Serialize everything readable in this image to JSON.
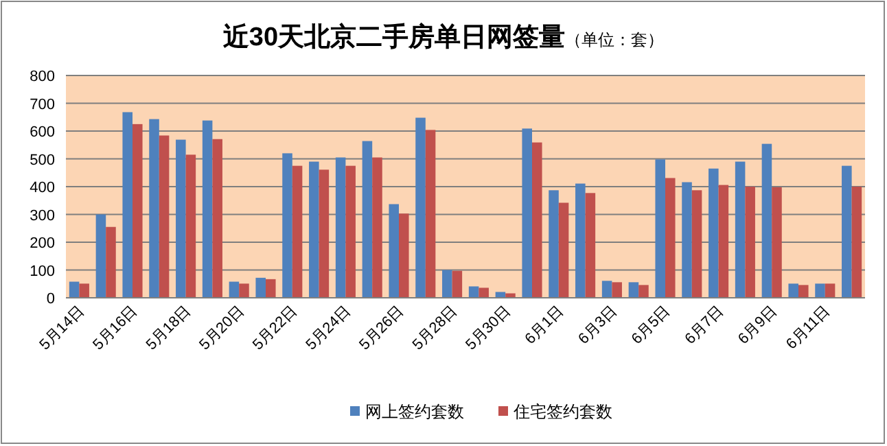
{
  "chart_data": {
    "type": "bar",
    "title": "近30天北京二手房单日网签量",
    "subtitle": "（单位：套）",
    "categories": [
      "5月14日",
      null,
      "5月16日",
      null,
      "5月18日",
      null,
      "5月20日",
      null,
      "5月22日",
      null,
      "5月24日",
      null,
      "5月26日",
      null,
      "5月28日",
      null,
      "5月30日",
      null,
      "6月1日",
      null,
      "6月3日",
      null,
      "6月5日",
      null,
      "6月7日",
      null,
      "6月9日",
      null,
      "6月11日",
      null
    ],
    "series": [
      {
        "name": "网上签约套数",
        "color": "#4f81bd",
        "values": [
          58,
          300,
          668,
          643,
          569,
          638,
          58,
          72,
          520,
          490,
          505,
          564,
          337,
          648,
          100,
          41,
          21,
          609,
          387,
          411,
          61,
          56,
          498,
          416,
          465,
          490,
          554,
          51,
          51,
          475
        ]
      },
      {
        "name": "住宅签约套数",
        "color": "#c0504d",
        "values": [
          51,
          255,
          625,
          584,
          515,
          571,
          51,
          67,
          475,
          461,
          475,
          505,
          303,
          604,
          97,
          36,
          16,
          559,
          342,
          377,
          56,
          46,
          431,
          387,
          406,
          400,
          398,
          46,
          51,
          400
        ]
      }
    ],
    "ylim": [
      0,
      800
    ],
    "yticks": [
      0,
      100,
      200,
      300,
      400,
      500,
      600,
      700,
      800
    ],
    "grid": "y",
    "legend": "bottom"
  }
}
